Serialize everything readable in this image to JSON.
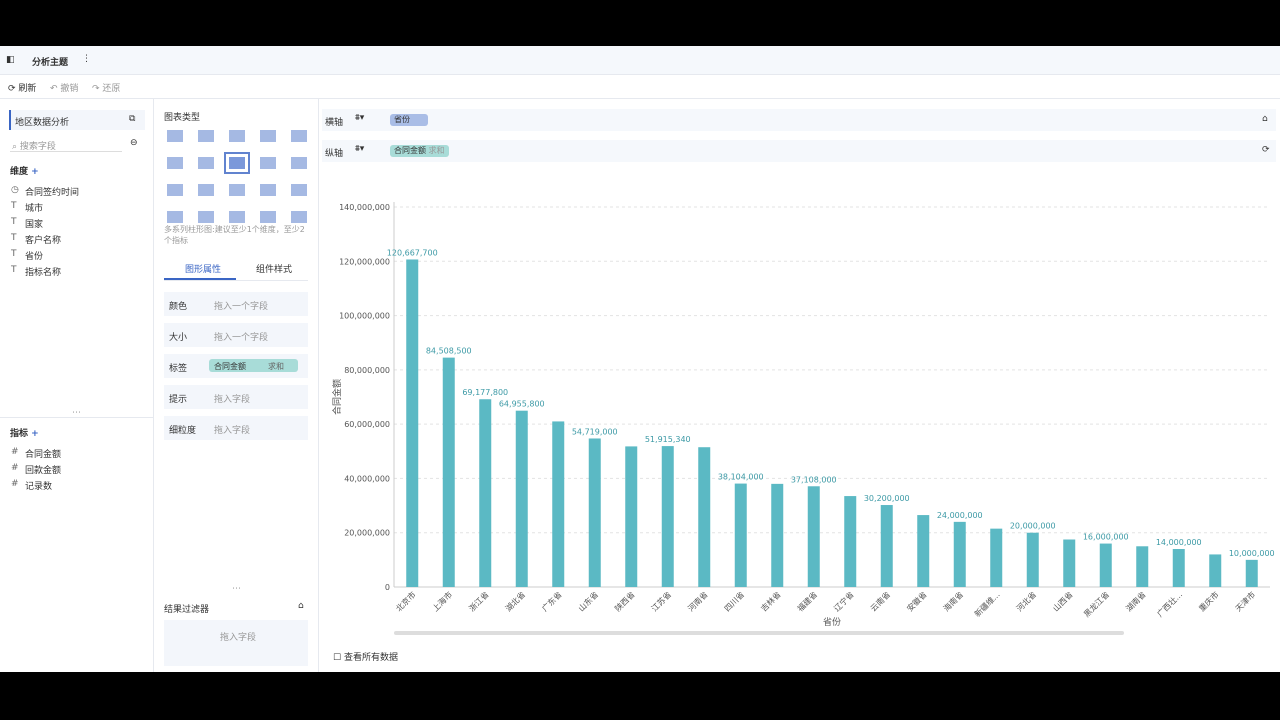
{
  "toolbar": {
    "tab": "分析主题",
    "refresh": "刷新",
    "undo": "撤销",
    "redo": "还原"
  },
  "data_panel": {
    "dataset": "地区数据分析",
    "search": "搜索字段",
    "dimension_title": "维度",
    "dimensions": [
      "合同签约时间",
      "城市",
      "国家",
      "客户名称",
      "省份",
      "指标名称"
    ],
    "measure_title": "指标",
    "measures": [
      "合同金额",
      "回款金额",
      "记录数"
    ]
  },
  "config_panel": {
    "chart_type_title": "图表类型",
    "chart_hint": "多系列柱形图:建议至少1个维度，至少2个指标",
    "tabs": [
      "图形属性",
      "组件样式"
    ],
    "attributes": [
      {
        "label": "颜色",
        "placeholder": "拖入一个字段"
      },
      {
        "label": "大小",
        "placeholder": "拖入一个字段"
      },
      {
        "label": "标签",
        "chip": "合同金额",
        "agg": "求和"
      },
      {
        "label": "提示",
        "placeholder": "拖入字段"
      },
      {
        "label": "细粒度",
        "placeholder": "拖入字段"
      }
    ],
    "filter_title": "结果过滤器",
    "filter_placeholder": "拖入字段"
  },
  "axes_bar": {
    "x_label": "横轴",
    "x_chip": "省份",
    "y_label": "纵轴",
    "y_chip": "合同金额",
    "y_agg": "求和"
  },
  "footer": {
    "view_all": "查看所有数据"
  },
  "chart_data": {
    "type": "bar",
    "xlabel": "省份",
    "ylabel": "合同金额",
    "categories": [
      "北京市",
      "上海市",
      "浙江省",
      "湖北省",
      "广东省",
      "山东省",
      "陕西省",
      "江苏省",
      "河南省",
      "四川省",
      "吉林省",
      "福建省",
      "辽宁省",
      "云南省",
      "安徽省",
      "海南省",
      "新疆维...",
      "河北省",
      "山西省",
      "黑龙江省",
      "湖南省",
      "广西壮...",
      "重庆市",
      "天津市"
    ],
    "values": [
      120667700,
      84508500,
      69177800,
      64955800,
      61000000,
      54719000,
      51800000,
      51915340,
      51500000,
      38104000,
      38000000,
      37108000,
      33500000,
      30200000,
      26500000,
      24000000,
      21500000,
      20000000,
      17500000,
      16000000,
      15000000,
      14000000,
      12000000,
      10000000
    ],
    "value_labels": [
      "120,667,700",
      "84,508,500",
      "69,177,800",
      "64,955,800",
      null,
      "54,719,000",
      null,
      "51,915,340",
      null,
      "38,104,000",
      null,
      "37,108,000",
      null,
      "30,200,000",
      null,
      "24,000,000",
      null,
      "20,000,000",
      null,
      "16,000,000",
      null,
      "14,000,000",
      null,
      "10,000,000"
    ],
    "color": "#5bb9c4",
    "ylim": [
      0,
      140000000
    ],
    "yticks": [
      0,
      {
        "value": 20000000,
        "label": "20,000,000"
      },
      {
        "value": 40000000,
        "label": "40,000,000"
      },
      {
        "value": 60000000,
        "label": "60,000,000"
      },
      {
        "value": 80000000,
        "label": "80,000,000"
      },
      {
        "value": 100000000,
        "label": "100,000,000"
      },
      {
        "value": 120000000,
        "label": "120,000,000"
      },
      {
        "value": 140000000,
        "label": "140,000,000"
      }
    ],
    "grid": true
  }
}
